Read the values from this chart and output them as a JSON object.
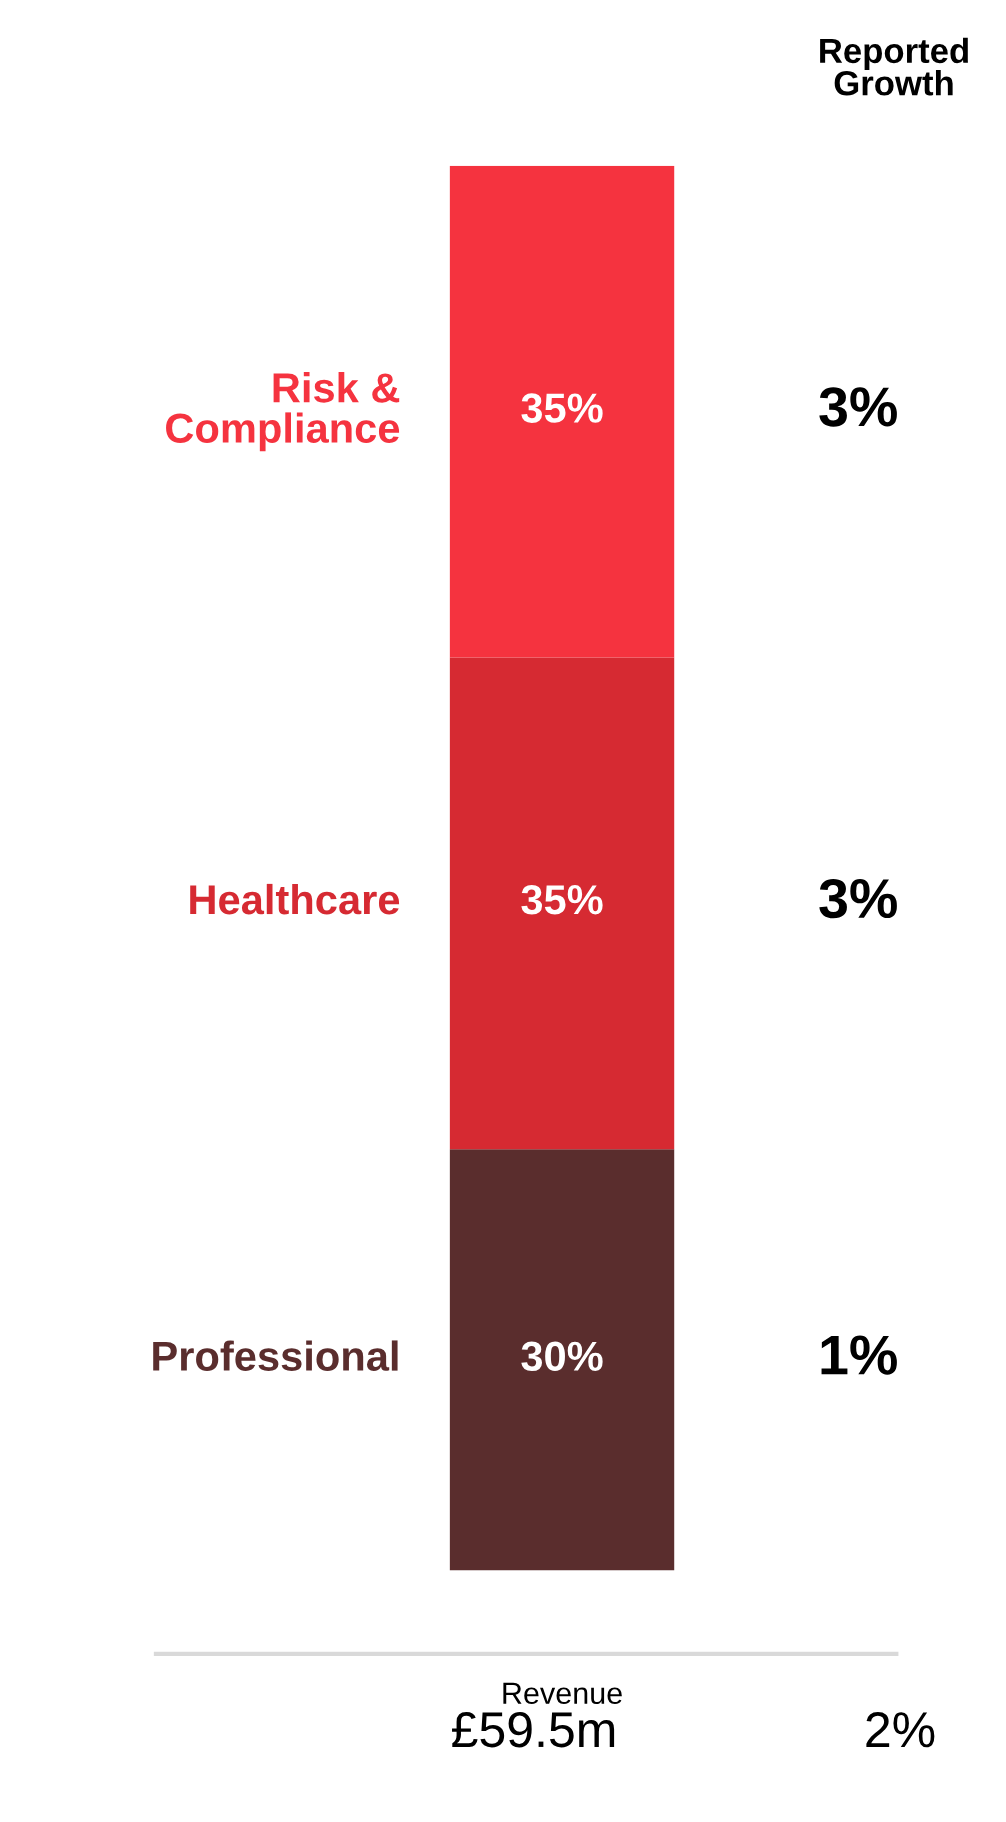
{
  "chart_data": {
    "type": "bar",
    "stacked": true,
    "categories": [
      "Revenue"
    ],
    "series": [
      {
        "name": "Professional",
        "color": "#5a2d2d",
        "values": [
          30
        ],
        "value_labels": [
          "30%"
        ]
      },
      {
        "name": "Healthcare",
        "color": "#d62a32",
        "values": [
          35
        ],
        "value_labels": [
          "35%"
        ]
      },
      {
        "name": "Risk &\nCompliance",
        "color": "#f5333f",
        "values": [
          35
        ],
        "value_labels": [
          "35%"
        ]
      }
    ],
    "annotations": [
      "Reported\nGrowth",
      "1%",
      "3%",
      "3%",
      "£59.5m",
      "2%"
    ],
    "legend": false,
    "grid": false
  }
}
